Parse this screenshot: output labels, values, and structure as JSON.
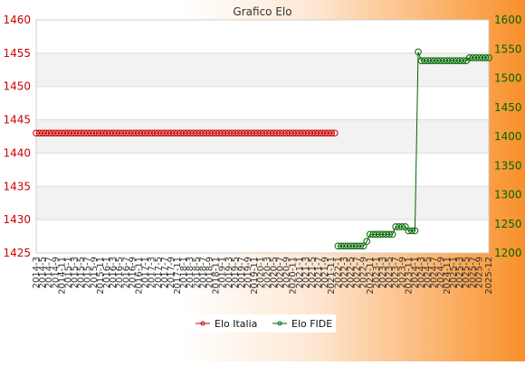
{
  "chart_data": {
    "type": "line",
    "title": "Grafico Elo",
    "y_left": {
      "min": 1425,
      "max": 1460,
      "ticks": [
        1425,
        1430,
        1435,
        1440,
        1445,
        1450,
        1455,
        1460
      ]
    },
    "y_right": {
      "min": 1200,
      "max": 1600,
      "ticks": [
        1200,
        1250,
        1300,
        1350,
        1400,
        1450,
        1500,
        1550,
        1600
      ]
    },
    "x": [
      "2014-3",
      "2014-4",
      "2014-5",
      "2014-6",
      "2014-7",
      "2014-8",
      "2014-9",
      "2014-10",
      "2014-11",
      "2014-12",
      "2015-1",
      "2015-2",
      "2015-3",
      "2015-4",
      "2015-5",
      "2015-6",
      "2015-7",
      "2015-8",
      "2015-9",
      "2015-10",
      "2015-11",
      "2015-12",
      "2016-1",
      "2016-2",
      "2016-3",
      "2016-4",
      "2016-5",
      "2016-6",
      "2016-7",
      "2016-8",
      "2016-9",
      "2016-10",
      "2016-11",
      "2016-12",
      "2017-1",
      "2017-2",
      "2017-3",
      "2017-4",
      "2017-5",
      "2017-6",
      "2017-7",
      "2017-8",
      "2017-9",
      "2017-10",
      "2017-11",
      "2017-12",
      "2018-1",
      "2018-2",
      "2018-3",
      "2018-4",
      "2018-5",
      "2018-6",
      "2018-7",
      "2018-8",
      "2018-9",
      "2018-10",
      "2018-11",
      "2018-12",
      "2019-1",
      "2019-2",
      "2019-3",
      "2019-4",
      "2019-5",
      "2019-6",
      "2019-7",
      "2019-8",
      "2019-9",
      "2019-10",
      "2019-11",
      "2019-12",
      "2020-1",
      "2020-2",
      "2020-3",
      "2020-4",
      "2020-5",
      "2020-6",
      "2020-7",
      "2020-8",
      "2020-9",
      "2020-10",
      "2020-11",
      "2020-12",
      "2021-1",
      "2021-2",
      "2021-3",
      "2021-4",
      "2021-5",
      "2021-6",
      "2021-7",
      "2021-8",
      "2021-9",
      "2021-10",
      "2021-11",
      "2021-12",
      "2022-1",
      "2022-2",
      "2022-3",
      "2022-4",
      "2022-5",
      "2022-6",
      "2022-7",
      "2022-8",
      "2022-9",
      "2022-10",
      "2022-11",
      "2022-12",
      "2023-1",
      "2023-2",
      "2023-3",
      "2023-4",
      "2023-5",
      "2023-6",
      "2023-7",
      "2023-8",
      "2023-9",
      "2023-10",
      "2023-11",
      "2023-12",
      "2024-1",
      "2024-2",
      "2024-3",
      "2024-4",
      "2024-5",
      "2024-6",
      "2024-7",
      "2024-8",
      "2024-9",
      "2024-10",
      "2024-11",
      "2024-12",
      "2025-1",
      "2025-2",
      "2025-3",
      "2025-4",
      "2025-5",
      "2025-6",
      "2025-7",
      "2025-8",
      "2025-9",
      "2025-10",
      "2025-11",
      "2025-12"
    ],
    "series": [
      {
        "name": "Elo Italia",
        "axis": "left",
        "color": "#cc0000",
        "values": [
          1443,
          1443,
          1443,
          1443,
          1443,
          1443,
          1443,
          1443,
          1443,
          1443,
          1443,
          1443,
          1443,
          1443,
          1443,
          1443,
          1443,
          1443,
          1443,
          1443,
          1443,
          1443,
          1443,
          1443,
          1443,
          1443,
          1443,
          1443,
          1443,
          1443,
          1443,
          1443,
          1443,
          1443,
          1443,
          1443,
          1443,
          1443,
          1443,
          1443,
          1443,
          1443,
          1443,
          1443,
          1443,
          1443,
          1443,
          1443,
          1443,
          1443,
          1443,
          1443,
          1443,
          1443,
          1443,
          1443,
          1443,
          1443,
          1443,
          1443,
          1443,
          1443,
          1443,
          1443,
          1443,
          1443,
          1443,
          1443,
          1443,
          1443,
          1443,
          1443,
          1443,
          1443,
          1443,
          1443,
          1443,
          1443,
          1443,
          1443,
          1443,
          1443,
          1443,
          1443,
          1443,
          1443,
          1443,
          1443,
          1443,
          1443,
          1443,
          1443,
          1443,
          1443,
          null,
          null,
          null,
          null,
          null,
          null,
          null,
          null,
          null,
          null,
          null,
          null,
          null,
          null,
          null,
          null,
          null,
          null,
          null,
          null,
          null,
          null,
          null,
          null,
          null,
          null,
          null,
          null,
          null,
          null,
          null,
          null,
          null,
          null,
          null,
          null,
          null,
          null,
          null,
          null,
          null,
          null,
          null,
          null,
          null,
          null,
          null,
          null
        ]
      },
      {
        "name": "Elo FIDE",
        "axis": "right",
        "color": "#006600",
        "values": [
          null,
          null,
          null,
          null,
          null,
          null,
          null,
          null,
          null,
          null,
          null,
          null,
          null,
          null,
          null,
          null,
          null,
          null,
          null,
          null,
          null,
          null,
          null,
          null,
          null,
          null,
          null,
          null,
          null,
          null,
          null,
          null,
          null,
          null,
          null,
          null,
          null,
          null,
          null,
          null,
          null,
          null,
          null,
          null,
          null,
          null,
          null,
          null,
          null,
          null,
          null,
          null,
          null,
          null,
          null,
          null,
          null,
          null,
          null,
          null,
          null,
          null,
          null,
          null,
          null,
          null,
          null,
          null,
          null,
          null,
          null,
          null,
          null,
          null,
          null,
          null,
          null,
          null,
          null,
          null,
          null,
          null,
          null,
          null,
          null,
          null,
          null,
          null,
          null,
          null,
          null,
          null,
          null,
          null,
          1212,
          1212,
          1212,
          1212,
          1212,
          1212,
          1212,
          1212,
          1212,
          1220,
          1232,
          1232,
          1232,
          1232,
          1232,
          1232,
          1232,
          1232,
          1245,
          1245,
          1245,
          1245,
          1238,
          1238,
          1238,
          1545,
          1530,
          1530,
          1530,
          1530,
          1530,
          1530,
          1530,
          1530,
          1530,
          1530,
          1530,
          1530,
          1530,
          1530,
          1530,
          1535,
          1535,
          1535,
          1535,
          1535,
          1535,
          1535
        ]
      }
    ],
    "x_tick_labels_visible": [
      "2014-3",
      "2014-5",
      "2014-7",
      "2014-9",
      "2014-11",
      "2015-1",
      "2015-3",
      "2015-5",
      "2015-7",
      "2015-9",
      "2015-11",
      "2016-1",
      "2016-3",
      "2016-5",
      "2016-7",
      "2016-9",
      "2016-11",
      "2017-1",
      "2017-3",
      "2017-5",
      "2017-7",
      "2017-9",
      "2017-11",
      "2018-1",
      "2018-3",
      "2018-5",
      "2018-7",
      "2018-9",
      "2018-11",
      "2019-1",
      "2019-3",
      "2019-5",
      "2019-7",
      "2019-9",
      "2019-11",
      "2020-1",
      "2020-3",
      "2020-5",
      "2020-7",
      "2020-9",
      "2020-11",
      "2021-1",
      "2021-3",
      "2021-5",
      "2021-7",
      "2021-9",
      "2021-11",
      "2022-1",
      "2022-3",
      "2022-5",
      "2022-7",
      "2022-9",
      "2022-11",
      "2023-1",
      "2023-3",
      "2023-5",
      "2023-7",
      "2023-9",
      "2023-11",
      "2024-1",
      "2024-3",
      "2024-5",
      "2024-7",
      "2024-9",
      "2024-11",
      "2025-1",
      "2025-3",
      "2025-5",
      "2025-7",
      "2025-9",
      "2025-12"
    ],
    "grid": true,
    "legend": "bottom-center"
  }
}
